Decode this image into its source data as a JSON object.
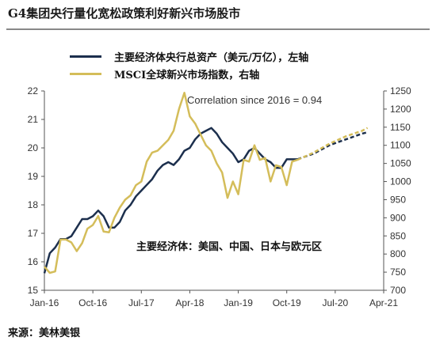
{
  "title": "G4集团央行量化宽松政策利好新兴市场股市",
  "legend": [
    {
      "label": "主要经济体央行总资产（美元/万亿），左轴",
      "color": "#1c2f4d"
    },
    {
      "label": "MSCI全球新兴市场指数，右轴",
      "color": "#d4bd5a"
    }
  ],
  "annotation": "Correlation since 2016 = 0.94",
  "region_note": "主要经济体：美国、中国、日本与欧元区",
  "source": "来源：美林美银",
  "chart_data": {
    "type": "line",
    "x_ticks": [
      "Jan-16",
      "Oct-16",
      "Jul-17",
      "Apr-18",
      "Jan-19",
      "Oct-19",
      "Jul-20",
      "Apr-21"
    ],
    "x_range": [
      "2016-01",
      "2021-04"
    ],
    "y_left": {
      "min": 15,
      "max": 22,
      "ticks": [
        15,
        16,
        17,
        18,
        19,
        20,
        21,
        22
      ]
    },
    "y_right": {
      "min": 700,
      "max": 1250,
      "ticks": [
        700,
        750,
        800,
        850,
        900,
        950,
        1000,
        1050,
        1100,
        1150,
        1200,
        1250
      ]
    },
    "forecast_from": "2019-12",
    "series": [
      {
        "name": "主要经济体央行总资产（美元/万亿），左轴",
        "axis": "left",
        "color": "#1c2f4d",
        "points": [
          [
            "2016-01",
            15.6
          ],
          [
            "2016-02",
            16.3
          ],
          [
            "2016-03",
            16.5
          ],
          [
            "2016-04",
            16.8
          ],
          [
            "2016-05",
            16.8
          ],
          [
            "2016-06",
            16.9
          ],
          [
            "2016-07",
            17.2
          ],
          [
            "2016-08",
            17.5
          ],
          [
            "2016-09",
            17.5
          ],
          [
            "2016-10",
            17.6
          ],
          [
            "2016-11",
            17.8
          ],
          [
            "2016-12",
            17.6
          ],
          [
            "2017-01",
            17.2
          ],
          [
            "2017-02",
            17.2
          ],
          [
            "2017-03",
            17.4
          ],
          [
            "2017-04",
            17.8
          ],
          [
            "2017-05",
            18.0
          ],
          [
            "2017-06",
            18.3
          ],
          [
            "2017-07",
            18.5
          ],
          [
            "2017-08",
            18.7
          ],
          [
            "2017-09",
            18.9
          ],
          [
            "2017-10",
            19.2
          ],
          [
            "2017-11",
            19.4
          ],
          [
            "2017-12",
            19.5
          ],
          [
            "2018-01",
            19.4
          ],
          [
            "2018-02",
            19.6
          ],
          [
            "2018-03",
            19.9
          ],
          [
            "2018-04",
            20.0
          ],
          [
            "2018-05",
            20.3
          ],
          [
            "2018-06",
            20.5
          ],
          [
            "2018-07",
            20.6
          ],
          [
            "2018-08",
            20.7
          ],
          [
            "2018-09",
            20.5
          ],
          [
            "2018-10",
            20.2
          ],
          [
            "2018-11",
            20.0
          ],
          [
            "2018-12",
            19.8
          ],
          [
            "2019-01",
            19.5
          ],
          [
            "2019-02",
            19.6
          ],
          [
            "2019-03",
            19.9
          ],
          [
            "2019-04",
            20.0
          ],
          [
            "2019-05",
            19.8
          ],
          [
            "2019-06",
            19.6
          ],
          [
            "2019-07",
            19.5
          ],
          [
            "2019-08",
            19.3
          ],
          [
            "2019-09",
            19.3
          ],
          [
            "2019-10",
            19.6
          ],
          [
            "2019-11",
            19.6
          ],
          [
            "2019-12",
            19.6
          ],
          [
            "2020-03",
            19.8
          ],
          [
            "2020-06",
            20.1
          ],
          [
            "2020-09",
            20.3
          ],
          [
            "2020-12",
            20.5
          ],
          [
            "2021-01",
            20.55
          ]
        ]
      },
      {
        "name": "MSCI全球新兴市场指数，右轴",
        "axis": "right",
        "color": "#d4bd5a",
        "points": [
          [
            "2016-01",
            765
          ],
          [
            "2016-02",
            748
          ],
          [
            "2016-03",
            752
          ],
          [
            "2016-04",
            840
          ],
          [
            "2016-05",
            840
          ],
          [
            "2016-06",
            832
          ],
          [
            "2016-07",
            808
          ],
          [
            "2016-08",
            830
          ],
          [
            "2016-09",
            870
          ],
          [
            "2016-10",
            880
          ],
          [
            "2016-11",
            905
          ],
          [
            "2016-12",
            862
          ],
          [
            "2017-01",
            860
          ],
          [
            "2017-02",
            900
          ],
          [
            "2017-03",
            928
          ],
          [
            "2017-04",
            950
          ],
          [
            "2017-05",
            962
          ],
          [
            "2017-06",
            990
          ],
          [
            "2017-07",
            1000
          ],
          [
            "2017-08",
            1055
          ],
          [
            "2017-09",
            1080
          ],
          [
            "2017-10",
            1085
          ],
          [
            "2017-11",
            1100
          ],
          [
            "2017-12",
            1115
          ],
          [
            "2018-01",
            1140
          ],
          [
            "2018-02",
            1200
          ],
          [
            "2018-03",
            1245
          ],
          [
            "2018-04",
            1180
          ],
          [
            "2018-05",
            1160
          ],
          [
            "2018-06",
            1130
          ],
          [
            "2018-07",
            1100
          ],
          [
            "2018-08",
            1085
          ],
          [
            "2018-09",
            1050
          ],
          [
            "2018-10",
            1025
          ],
          [
            "2018-11",
            955
          ],
          [
            "2018-12",
            1000
          ],
          [
            "2019-01",
            965
          ],
          [
            "2019-02",
            1060
          ],
          [
            "2019-03",
            1055
          ],
          [
            "2019-04",
            1100
          ],
          [
            "2019-05",
            1060
          ],
          [
            "2019-06",
            1065
          ],
          [
            "2019-07",
            1000
          ],
          [
            "2019-08",
            1045
          ],
          [
            "2019-09",
            1040
          ],
          [
            "2019-10",
            990
          ],
          [
            "2019-11",
            1055
          ],
          [
            "2019-12",
            1060
          ],
          [
            "2020-03",
            1080
          ],
          [
            "2020-06",
            1105
          ],
          [
            "2020-09",
            1125
          ],
          [
            "2020-12",
            1140
          ],
          [
            "2021-01",
            1148
          ]
        ]
      }
    ]
  }
}
